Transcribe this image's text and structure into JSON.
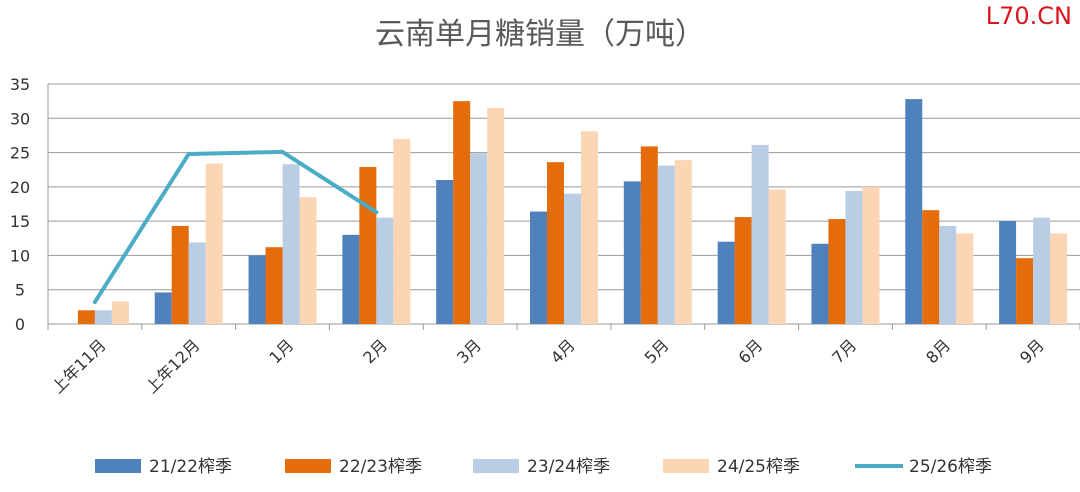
{
  "watermark": "L70.CN",
  "chart_data": {
    "type": "bar",
    "title": "云南单月糖销量（万吨）",
    "xlabel": "",
    "ylabel": "",
    "ylim": [
      0,
      35
    ],
    "yticks": [
      0,
      5,
      10,
      15,
      20,
      25,
      30,
      35
    ],
    "grid": true,
    "legend_position": "bottom",
    "categories": [
      "上年11月",
      "上年12月",
      "1月",
      "2月",
      "3月",
      "4月",
      "5月",
      "6月",
      "7月",
      "8月",
      "9月"
    ],
    "series": [
      {
        "name": "21/22榨季",
        "kind": "bar",
        "color": "#4f81bd",
        "values": [
          null,
          4.6,
          10.0,
          13.0,
          21.0,
          16.4,
          20.8,
          12.0,
          11.7,
          32.8,
          15.0
        ]
      },
      {
        "name": "22/23榨季",
        "kind": "bar",
        "color": "#e46c0a",
        "values": [
          2.0,
          14.3,
          11.2,
          22.9,
          32.5,
          23.6,
          25.9,
          15.6,
          15.3,
          16.6,
          9.6
        ]
      },
      {
        "name": "23/24榨季",
        "kind": "bar",
        "color": "#b9cde5",
        "values": [
          2.0,
          11.9,
          23.3,
          15.5,
          24.9,
          19.0,
          23.1,
          26.1,
          19.4,
          14.3,
          15.5
        ]
      },
      {
        "name": "24/25榨季",
        "kind": "bar",
        "color": "#fcd5b5",
        "values": [
          3.3,
          23.4,
          18.5,
          27.0,
          31.5,
          28.1,
          23.9,
          19.6,
          20.0,
          13.2,
          13.2
        ]
      },
      {
        "name": "25/26榨季",
        "kind": "line",
        "color": "#4bacc6",
        "values": [
          3.2,
          24.8,
          25.1,
          16.3,
          null,
          null,
          null,
          null,
          null,
          null,
          null
        ]
      }
    ]
  }
}
